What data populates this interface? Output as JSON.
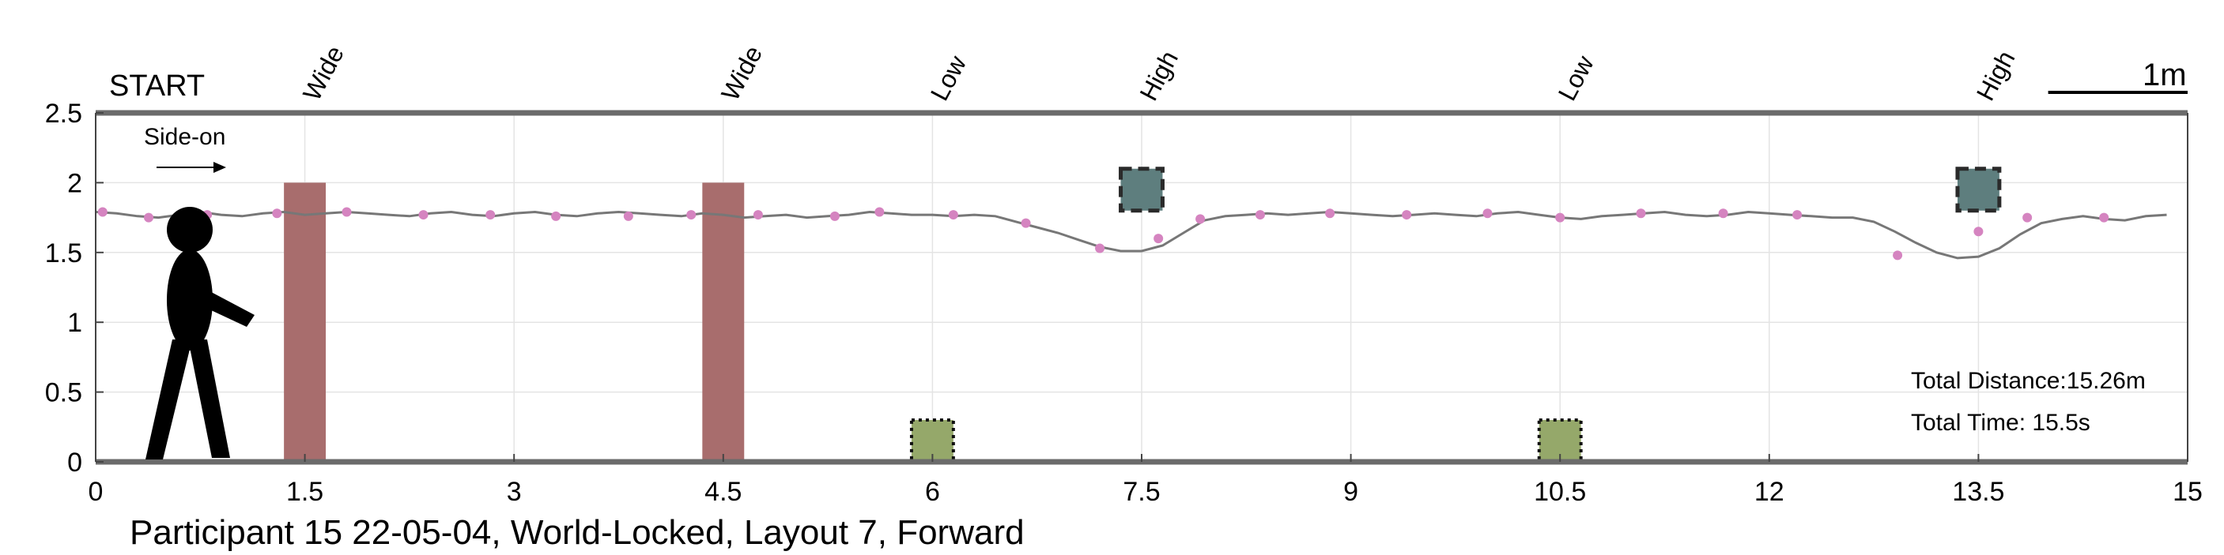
{
  "chart_data": {
    "type": "line",
    "title": "Participant 15 22-05-04, World-Locked, Layout 7, Forward",
    "xlim": [
      0,
      15
    ],
    "ylim": [
      0,
      2.5
    ],
    "grid": true,
    "x_ticks": [
      "0",
      "1.5",
      "3",
      "4.5",
      "6",
      "7.5",
      "9",
      "10.5",
      "12",
      "13.5",
      "15"
    ],
    "y_ticks": [
      "0",
      "0.5",
      "1",
      "1.5",
      "2",
      "2.5"
    ],
    "start_label": "START",
    "direction_label": "Side-on",
    "scale_bar_label": "1m",
    "scale_bar_length": 1,
    "total_distance": "Total Distance:15.26m",
    "total_time": "Total Time: 15.5s",
    "obstacles": [
      {
        "label": "Wide",
        "x": 1.5,
        "kind": "wide",
        "width": 0.3,
        "height": 2.0,
        "color": "#a86d6d"
      },
      {
        "label": "Wide",
        "x": 4.5,
        "kind": "wide",
        "width": 0.3,
        "height": 2.0,
        "color": "#a86d6d"
      },
      {
        "label": "Low",
        "x": 6.0,
        "kind": "low",
        "width": 0.3,
        "height": 0.3,
        "color": "#95a86a"
      },
      {
        "label": "High",
        "x": 7.5,
        "kind": "high",
        "width": 0.3,
        "height": 0.3,
        "y": 1.95,
        "color": "#5e7e7e"
      },
      {
        "label": "Low",
        "x": 10.5,
        "kind": "low",
        "width": 0.3,
        "height": 0.3,
        "color": "#95a86a"
      },
      {
        "label": "High",
        "x": 13.5,
        "kind": "high",
        "width": 0.3,
        "height": 0.3,
        "y": 1.95,
        "color": "#5e7e7e"
      }
    ],
    "series": [
      {
        "kind": "head_height_path",
        "color": "#777777",
        "x": [
          0.0,
          0.15,
          0.3,
          0.45,
          0.6,
          0.75,
          0.9,
          1.05,
          1.2,
          1.35,
          1.5,
          1.65,
          1.8,
          1.95,
          2.1,
          2.25,
          2.4,
          2.55,
          2.7,
          2.85,
          3.0,
          3.15,
          3.3,
          3.45,
          3.6,
          3.75,
          3.9,
          4.05,
          4.2,
          4.35,
          4.5,
          4.65,
          4.8,
          4.95,
          5.1,
          5.25,
          5.4,
          5.55,
          5.7,
          5.85,
          6.0,
          6.15,
          6.3,
          6.45,
          6.6,
          6.75,
          6.9,
          7.05,
          7.2,
          7.35,
          7.5,
          7.65,
          7.8,
          7.95,
          8.1,
          8.25,
          8.4,
          8.55,
          8.7,
          8.85,
          9.0,
          9.15,
          9.3,
          9.45,
          9.6,
          9.75,
          9.9,
          10.05,
          10.2,
          10.35,
          10.5,
          10.65,
          10.8,
          10.95,
          11.1,
          11.25,
          11.4,
          11.55,
          11.7,
          11.85,
          12.0,
          12.15,
          12.3,
          12.45,
          12.6,
          12.75,
          12.9,
          13.05,
          13.2,
          13.35,
          13.5,
          13.65,
          13.8,
          13.95,
          14.1,
          14.25,
          14.4,
          14.55,
          14.7,
          14.85
        ],
        "y": [
          1.79,
          1.78,
          1.76,
          1.75,
          1.77,
          1.79,
          1.77,
          1.76,
          1.78,
          1.79,
          1.77,
          1.78,
          1.79,
          1.78,
          1.77,
          1.76,
          1.78,
          1.79,
          1.77,
          1.76,
          1.78,
          1.79,
          1.77,
          1.76,
          1.78,
          1.79,
          1.78,
          1.77,
          1.76,
          1.78,
          1.77,
          1.75,
          1.76,
          1.77,
          1.75,
          1.76,
          1.77,
          1.79,
          1.78,
          1.77,
          1.77,
          1.76,
          1.77,
          1.76,
          1.72,
          1.68,
          1.64,
          1.59,
          1.54,
          1.51,
          1.51,
          1.55,
          1.64,
          1.73,
          1.76,
          1.77,
          1.78,
          1.77,
          1.78,
          1.79,
          1.78,
          1.77,
          1.76,
          1.77,
          1.78,
          1.77,
          1.76,
          1.78,
          1.79,
          1.77,
          1.75,
          1.74,
          1.76,
          1.77,
          1.78,
          1.79,
          1.77,
          1.76,
          1.77,
          1.79,
          1.78,
          1.77,
          1.76,
          1.75,
          1.75,
          1.72,
          1.65,
          1.57,
          1.5,
          1.46,
          1.47,
          1.53,
          1.63,
          1.71,
          1.74,
          1.76,
          1.74,
          1.73,
          1.76,
          1.77
        ]
      },
      {
        "kind": "footstep_markers",
        "color": "#d584c0",
        "x": [
          0.05,
          0.38,
          0.8,
          1.3,
          1.8,
          2.35,
          2.83,
          3.3,
          3.82,
          4.27,
          4.75,
          5.3,
          5.62,
          6.15,
          6.67,
          7.2,
          7.62,
          7.92,
          8.35,
          8.85,
          9.4,
          9.98,
          10.5,
          11.08,
          11.67,
          12.2,
          12.92,
          13.5,
          13.85,
          14.4
        ],
        "y": [
          1.79,
          1.75,
          1.77,
          1.78,
          1.79,
          1.77,
          1.77,
          1.76,
          1.76,
          1.77,
          1.77,
          1.76,
          1.79,
          1.77,
          1.71,
          1.53,
          1.6,
          1.74,
          1.77,
          1.78,
          1.77,
          1.78,
          1.75,
          1.78,
          1.78,
          1.77,
          1.48,
          1.65,
          1.75,
          1.75
        ]
      }
    ]
  }
}
